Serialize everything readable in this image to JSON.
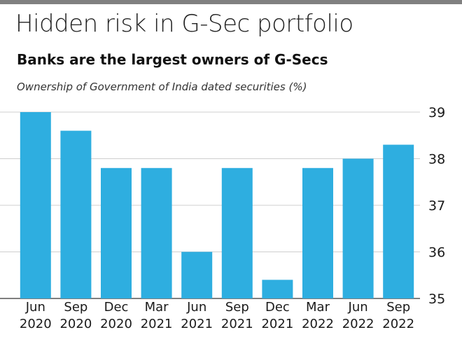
{
  "header": {
    "title": "Hidden risk in G-Sec portfolio",
    "subtitle": "Banks are the largest owners of G-Secs",
    "caption": "Ownership of Government of India dated securities (%)"
  },
  "colors": {
    "bar": "#2eaee0",
    "grid": "#cfcfcf",
    "top_rule": "#808080"
  },
  "chart_data": {
    "type": "bar",
    "title": "Banks are the largest owners of G-Secs",
    "subtitle": "Ownership of Government of India dated securities (%)",
    "categories": [
      [
        "Jun",
        "2020"
      ],
      [
        "Sep",
        "2020"
      ],
      [
        "Dec",
        "2020"
      ],
      [
        "Mar",
        "2021"
      ],
      [
        "Jun",
        "2021"
      ],
      [
        "Sep",
        "2021"
      ],
      [
        "Dec",
        "2021"
      ],
      [
        "Mar",
        "2022"
      ],
      [
        "Jun",
        "2022"
      ],
      [
        "Sep",
        "2022"
      ]
    ],
    "values": [
      39.0,
      38.6,
      37.8,
      37.8,
      36.0,
      37.8,
      35.4,
      37.8,
      38.0,
      38.3
    ],
    "xlabel": "",
    "ylabel": "",
    "ylim": [
      35,
      39
    ],
    "yticks": [
      39,
      38,
      37,
      36,
      35
    ],
    "y_axis_position": "right",
    "grid": true
  }
}
